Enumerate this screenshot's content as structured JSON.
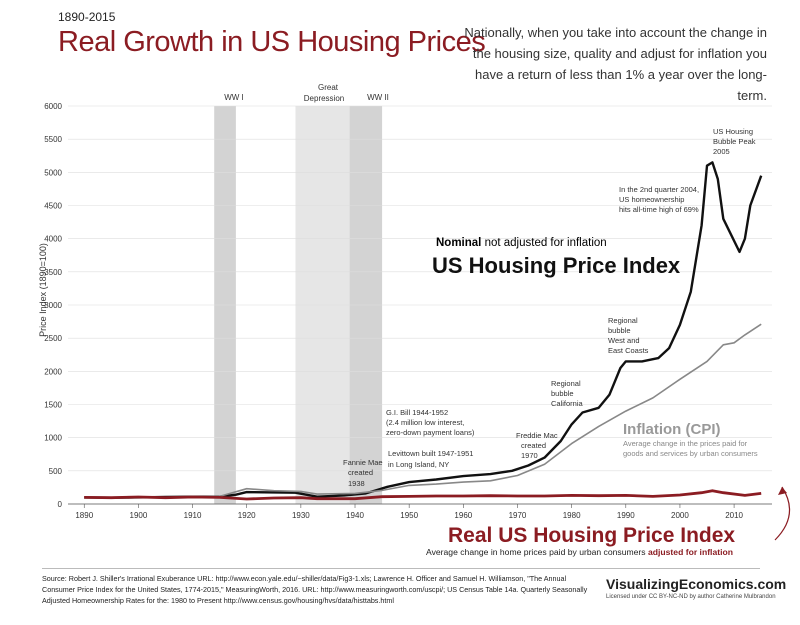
{
  "header": {
    "years": "1890-2015",
    "title": "Real Growth in US Housing Prices",
    "intro": "Nationally, when you take into account the change in the housing size, quality and adjust for inflation you have a return of less than 1% a year over the long-term."
  },
  "axis": {
    "ylabel": "Price Index (1890=100)"
  },
  "periods": [
    {
      "label": "WW I",
      "start": 1914,
      "end": 1918
    },
    {
      "label": "Great Depression",
      "start": 1929,
      "end": 1939
    },
    {
      "label": "WW II",
      "start": 1939,
      "end": 1945
    }
  ],
  "labels": {
    "nominal_prefix": "Nominal",
    "nominal_suffix": " not adjusted for inflation",
    "nominal_title": "US Housing Price Index",
    "cpi_title": "Inflation (CPI)",
    "cpi_desc_1": "Average change in the prices paid for",
    "cpi_desc_2": "goods and services by urban consumers",
    "real_title": "Real US Housing Price Index",
    "real_desc": "Average change in home prices paid by urban consumers",
    "real_desc_bold": "adjusted for inflation"
  },
  "annotations": {
    "fannie": [
      "Fannie Mae",
      "created",
      "1938"
    ],
    "gi": [
      "G.I. Bill  1944-1952",
      "(2.4 million low interest,",
      "zero-down payment loans)"
    ],
    "levittown": [
      "Levittown built 1947-1951",
      "in Long Island, NY"
    ],
    "freddie": [
      "Freddie Mac",
      "created",
      "1970"
    ],
    "california": [
      "Regional",
      "bubble",
      "California"
    ],
    "westeast": [
      "Regional",
      "bubble",
      "West and",
      "East Coasts"
    ],
    "ownership": [
      "In the 2nd quarter 2004,",
      "US homeownership",
      "hits all-time high of 69%"
    ],
    "peak": [
      "US Housing",
      "Bubble Peak",
      "2005"
    ]
  },
  "footer": {
    "source": "Source: Robert J. Shiller's Irrational Exuberance URL: http://www.econ.yale.edu/~shiller/data/Fig3-1.xls; Lawrence H. Officer and Samuel H. Williamson, \"The Annual Consumer Price Index for the United States, 1774-2015,\" MeasuringWorth, 2016. URL: http://www.measuringworth.com/uscpi/; US Census Table 14a. Quarterly Seasonally Adjusted Homeownership Rates for the: 1980 to Present http://www.census.gov/housing/hvs/data/histtabs.html",
    "brand": "VisualizingEconomics.com",
    "license": "Licensed under CC BY-NC-ND by author Catherine Mulbrandon"
  },
  "chart_data": {
    "type": "line",
    "xlim": [
      1887,
      2017
    ],
    "ylim": [
      0,
      6000
    ],
    "xticks": [
      1890,
      1900,
      1910,
      1920,
      1930,
      1940,
      1950,
      1960,
      1970,
      1980,
      1990,
      2000,
      2010
    ],
    "yticks": [
      0,
      500,
      1000,
      1500,
      2000,
      2500,
      3000,
      3500,
      4000,
      4500,
      5000,
      5500,
      6000
    ],
    "grid": true,
    "series": [
      {
        "name": "Nominal US Housing Price Index",
        "color": "#111111",
        "points": [
          [
            1890,
            100
          ],
          [
            1895,
            95
          ],
          [
            1900,
            100
          ],
          [
            1905,
            105
          ],
          [
            1910,
            110
          ],
          [
            1915,
            110
          ],
          [
            1918,
            140
          ],
          [
            1920,
            180
          ],
          [
            1925,
            175
          ],
          [
            1929,
            170
          ],
          [
            1933,
            110
          ],
          [
            1938,
            130
          ],
          [
            1942,
            160
          ],
          [
            1946,
            260
          ],
          [
            1950,
            330
          ],
          [
            1955,
            370
          ],
          [
            1960,
            420
          ],
          [
            1965,
            450
          ],
          [
            1969,
            500
          ],
          [
            1972,
            580
          ],
          [
            1975,
            700
          ],
          [
            1978,
            950
          ],
          [
            1980,
            1200
          ],
          [
            1982,
            1380
          ],
          [
            1985,
            1450
          ],
          [
            1987,
            1650
          ],
          [
            1989,
            2050
          ],
          [
            1990,
            2150
          ],
          [
            1993,
            2150
          ],
          [
            1996,
            2200
          ],
          [
            1998,
            2350
          ],
          [
            2000,
            2700
          ],
          [
            2002,
            3200
          ],
          [
            2004,
            4200
          ],
          [
            2005,
            5100
          ],
          [
            2006,
            5150
          ],
          [
            2007,
            4900
          ],
          [
            2008,
            4300
          ],
          [
            2011,
            3800
          ],
          [
            2012,
            4000
          ],
          [
            2013,
            4500
          ],
          [
            2015,
            4950
          ]
        ]
      },
      {
        "name": "Inflation (CPI)",
        "color": "#888888",
        "points": [
          [
            1890,
            100
          ],
          [
            1900,
            95
          ],
          [
            1910,
            105
          ],
          [
            1915,
            115
          ],
          [
            1920,
            230
          ],
          [
            1925,
            200
          ],
          [
            1930,
            190
          ],
          [
            1933,
            150
          ],
          [
            1940,
            160
          ],
          [
            1945,
            205
          ],
          [
            1950,
            280
          ],
          [
            1955,
            300
          ],
          [
            1960,
            330
          ],
          [
            1965,
            350
          ],
          [
            1970,
            430
          ],
          [
            1975,
            600
          ],
          [
            1980,
            910
          ],
          [
            1985,
            1170
          ],
          [
            1990,
            1400
          ],
          [
            1995,
            1600
          ],
          [
            2000,
            1880
          ],
          [
            2005,
            2150
          ],
          [
            2008,
            2400
          ],
          [
            2010,
            2430
          ],
          [
            2012,
            2550
          ],
          [
            2015,
            2710
          ]
        ]
      },
      {
        "name": "Real US Housing Price Index",
        "color": "#8b1c22",
        "points": [
          [
            1890,
            100
          ],
          [
            1895,
            95
          ],
          [
            1900,
            105
          ],
          [
            1905,
            95
          ],
          [
            1910,
            105
          ],
          [
            1915,
            100
          ],
          [
            1920,
            75
          ],
          [
            1925,
            90
          ],
          [
            1930,
            95
          ],
          [
            1933,
            80
          ],
          [
            1940,
            80
          ],
          [
            1945,
            110
          ],
          [
            1950,
            115
          ],
          [
            1955,
            120
          ],
          [
            1960,
            120
          ],
          [
            1965,
            125
          ],
          [
            1970,
            120
          ],
          [
            1975,
            120
          ],
          [
            1980,
            130
          ],
          [
            1985,
            125
          ],
          [
            1990,
            130
          ],
          [
            1995,
            115
          ],
          [
            2000,
            135
          ],
          [
            2004,
            170
          ],
          [
            2006,
            200
          ],
          [
            2008,
            170
          ],
          [
            2012,
            130
          ],
          [
            2015,
            160
          ]
        ]
      }
    ]
  }
}
